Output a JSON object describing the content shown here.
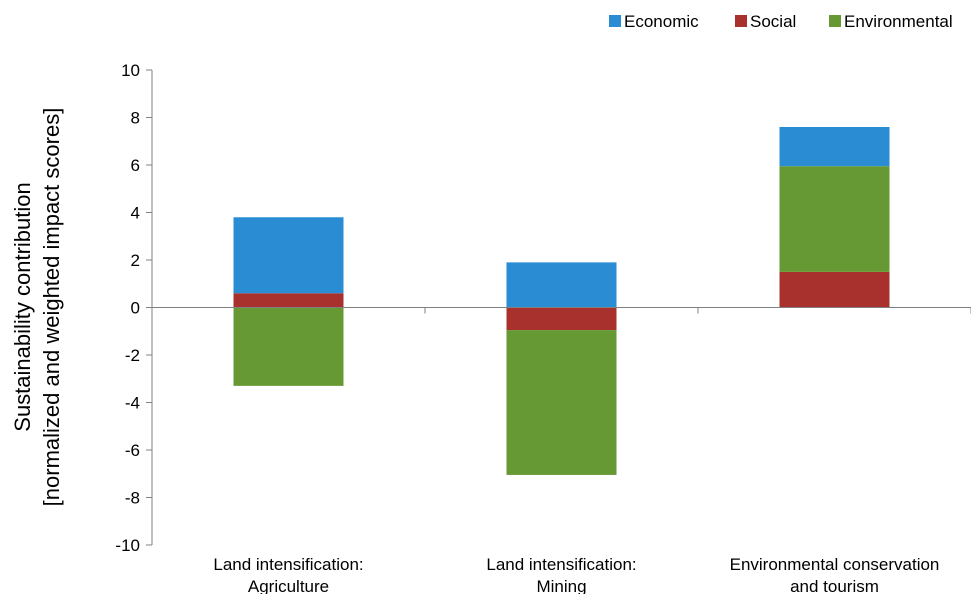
{
  "chart_data": {
    "type": "bar",
    "stacked": true,
    "categories": [
      [
        "Land intensification:",
        "Agriculture"
      ],
      [
        "Land intensification:",
        "Mining"
      ],
      [
        "Environmental conservation",
        "and tourism"
      ]
    ],
    "series": [
      {
        "name": "Economic",
        "color": "#2a8dd4",
        "values": [
          3.2,
          1.9,
          1.65
        ]
      },
      {
        "name": "Social",
        "color": "#a8312d",
        "values": [
          0.6,
          -0.95,
          1.5
        ]
      },
      {
        "name": "Environmental",
        "color": "#669933",
        "values": [
          -3.3,
          -6.1,
          4.45
        ]
      }
    ],
    "ylabel_lines": [
      "Sustainability contribution",
      "[normalized and weighted impact scores]"
    ],
    "xlabel": "",
    "ylim": [
      -10,
      10
    ],
    "yticks": [
      10,
      8,
      6,
      4,
      2,
      0,
      -2,
      -4,
      -6,
      -8,
      -10
    ],
    "grid": false,
    "legend_position": "top-right"
  }
}
